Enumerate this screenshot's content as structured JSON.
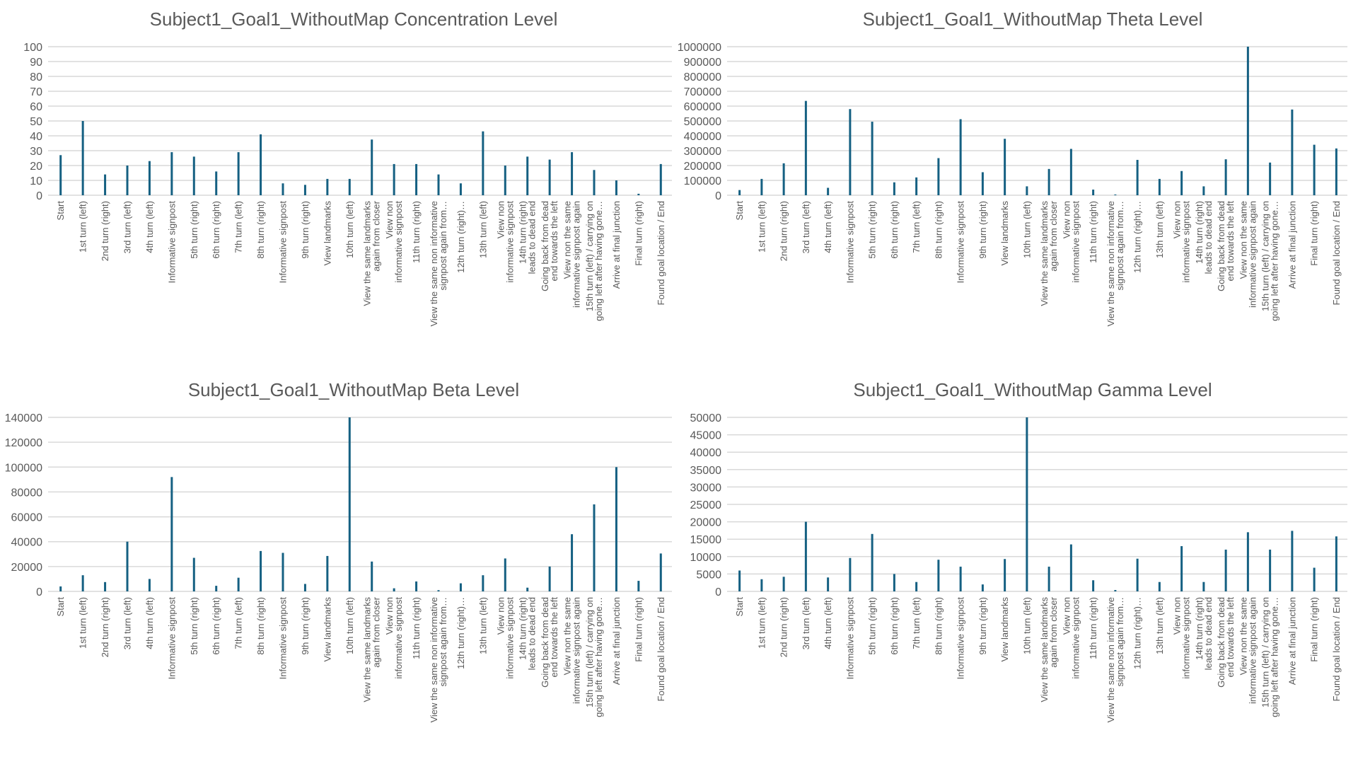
{
  "bar_color": "#156082",
  "grid_color": "#d9d9d9",
  "categories": [
    "Start",
    "1st turn (left)",
    "2nd turn (right)",
    "3rd turn (left)",
    "4th turn (left)",
    "Informative signpost",
    "5th turn (right)",
    "6th turn (right)",
    "7th turn (left)",
    "8th turn (right)",
    "Informative signpost",
    "9th turn (right)",
    "View landmarks",
    "10th turn (left)",
    "View the same landmarks again from closer",
    "View non informative signpost",
    "11th turn (right)",
    "View the same non informative signpost again from…",
    "12th turn (right)…",
    "13th turn (left)",
    "View non informative signpost",
    "14th turn (right) leads to dead end",
    "Going back from dead end towards the left",
    "View non the same informative signpost again",
    "15th turn (left) / carrying on going left after having gone…",
    "Arrive at final junction",
    "Final turn (right)",
    "Found goal location / End"
  ],
  "chart_data": [
    {
      "type": "bar",
      "title": "Subject1_Goal1_WithoutMap Concentration Level",
      "ylim": [
        0,
        100
      ],
      "yticks": [
        0,
        10,
        20,
        30,
        40,
        50,
        60,
        70,
        80,
        90,
        100
      ],
      "grid": true,
      "values": [
        27,
        50,
        14,
        20,
        23,
        29,
        26,
        16,
        29,
        41,
        8,
        7,
        11,
        11,
        37.5,
        21,
        21,
        14,
        8,
        43,
        20,
        26,
        24,
        29,
        17,
        10,
        1,
        21
      ]
    },
    {
      "type": "bar",
      "title": "Subject1_Goal1_WithoutMap Theta Level",
      "ylim": [
        0,
        1000000
      ],
      "yticks": [
        0,
        100000,
        200000,
        300000,
        400000,
        500000,
        600000,
        700000,
        800000,
        900000,
        1000000
      ],
      "grid": true,
      "values": [
        35000,
        110000,
        215000,
        635000,
        50000,
        580000,
        495000,
        87000,
        120000,
        250000,
        512000,
        155000,
        380000,
        60000,
        177000,
        312000,
        38000,
        5000,
        238000,
        110000,
        163000,
        60000,
        242000,
        1000000,
        220000,
        577000,
        340000,
        315000
      ]
    },
    {
      "type": "bar",
      "title": "Subject1_Goal1_WithoutMap Beta Level",
      "ylim": [
        0,
        140000
      ],
      "yticks": [
        0,
        20000,
        40000,
        60000,
        80000,
        100000,
        120000,
        140000
      ],
      "grid": true,
      "values": [
        4000,
        13000,
        7500,
        40000,
        10000,
        92000,
        27000,
        4500,
        11000,
        32500,
        31000,
        6000,
        28500,
        140000,
        24000,
        2500,
        8000,
        1000,
        6500,
        13000,
        26500,
        3000,
        20000,
        46000,
        70000,
        100000,
        8500,
        30500
      ]
    },
    {
      "type": "bar",
      "title": "Subject1_Goal1_WithoutMap Gamma Level",
      "ylim": [
        0,
        50000
      ],
      "yticks": [
        0,
        5000,
        10000,
        15000,
        20000,
        25000,
        30000,
        35000,
        40000,
        45000,
        50000
      ],
      "grid": true,
      "values": [
        6000,
        3500,
        4200,
        20000,
        4000,
        9600,
        16500,
        5000,
        2700,
        9100,
        7100,
        2000,
        9300,
        50000,
        7100,
        13500,
        3200,
        400,
        9400,
        2700,
        13000,
        2700,
        12000,
        17000,
        12000,
        17400,
        6800,
        15800
      ]
    }
  ]
}
